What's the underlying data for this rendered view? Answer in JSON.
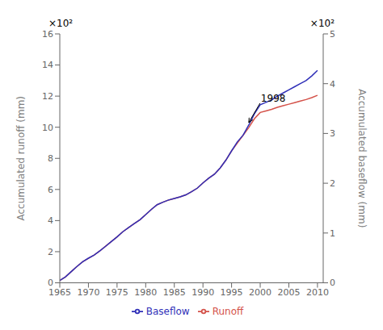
{
  "chart_data": {
    "type": "line",
    "x": [
      1965,
      1966,
      1967,
      1968,
      1969,
      1970,
      1971,
      1972,
      1973,
      1974,
      1975,
      1976,
      1977,
      1978,
      1979,
      1980,
      1981,
      1982,
      1983,
      1984,
      1985,
      1986,
      1987,
      1988,
      1989,
      1990,
      1991,
      1992,
      1993,
      1994,
      1995,
      1996,
      1997,
      1998,
      1999,
      2000,
      2001,
      2002,
      2003,
      2004,
      2005,
      2006,
      2007,
      2008,
      2009,
      2010
    ],
    "series": [
      {
        "name": "Runoff",
        "color": "#d4524a",
        "axis": "y",
        "values": [
          0.15,
          0.38,
          0.72,
          1.05,
          1.35,
          1.58,
          1.78,
          2.05,
          2.35,
          2.65,
          2.95,
          3.28,
          3.55,
          3.8,
          4.05,
          4.38,
          4.72,
          5.02,
          5.18,
          5.32,
          5.42,
          5.52,
          5.65,
          5.85,
          6.08,
          6.42,
          6.72,
          6.98,
          7.38,
          7.88,
          8.48,
          8.98,
          9.48,
          9.98,
          10.55,
          10.95,
          11.05,
          11.15,
          11.28,
          11.38,
          11.48,
          11.58,
          11.68,
          11.78,
          11.9,
          12.05
        ]
      },
      {
        "name": "Baseflow",
        "color": "#3030b8",
        "axis": "y2",
        "values": [
          0.047,
          0.119,
          0.225,
          0.328,
          0.422,
          0.494,
          0.556,
          0.641,
          0.734,
          0.828,
          0.922,
          1.025,
          1.109,
          1.188,
          1.266,
          1.369,
          1.475,
          1.569,
          1.619,
          1.663,
          1.694,
          1.725,
          1.766,
          1.828,
          1.9,
          2.006,
          2.1,
          2.181,
          2.306,
          2.463,
          2.65,
          2.831,
          2.963,
          3.169,
          3.397,
          3.578,
          3.625,
          3.672,
          3.75,
          3.813,
          3.875,
          3.938,
          4.0,
          4.063,
          4.156,
          4.266
        ]
      }
    ],
    "xlim": [
      1965,
      2011
    ],
    "xticks": [
      1965,
      1970,
      1975,
      1980,
      1985,
      1990,
      1995,
      2000,
      2005,
      2010
    ],
    "ylim": [
      0,
      16
    ],
    "yticks": [
      0,
      2,
      4,
      6,
      8,
      10,
      12,
      14,
      16
    ],
    "y2lim": [
      0,
      5
    ],
    "y2ticks": [
      0,
      1,
      2,
      3,
      4,
      5
    ],
    "ylabel": "Accumulated runoff (mm)",
    "y2label": "Accumulated baseflow (mm)",
    "annotations": [
      {
        "text": "1998",
        "x": 1998,
        "y": 10.2
      },
      {
        "text": "×10²",
        "axis": "y"
      },
      {
        "text": "×10²",
        "axis": "y2"
      }
    ],
    "grid": false,
    "legend": "bottom"
  }
}
